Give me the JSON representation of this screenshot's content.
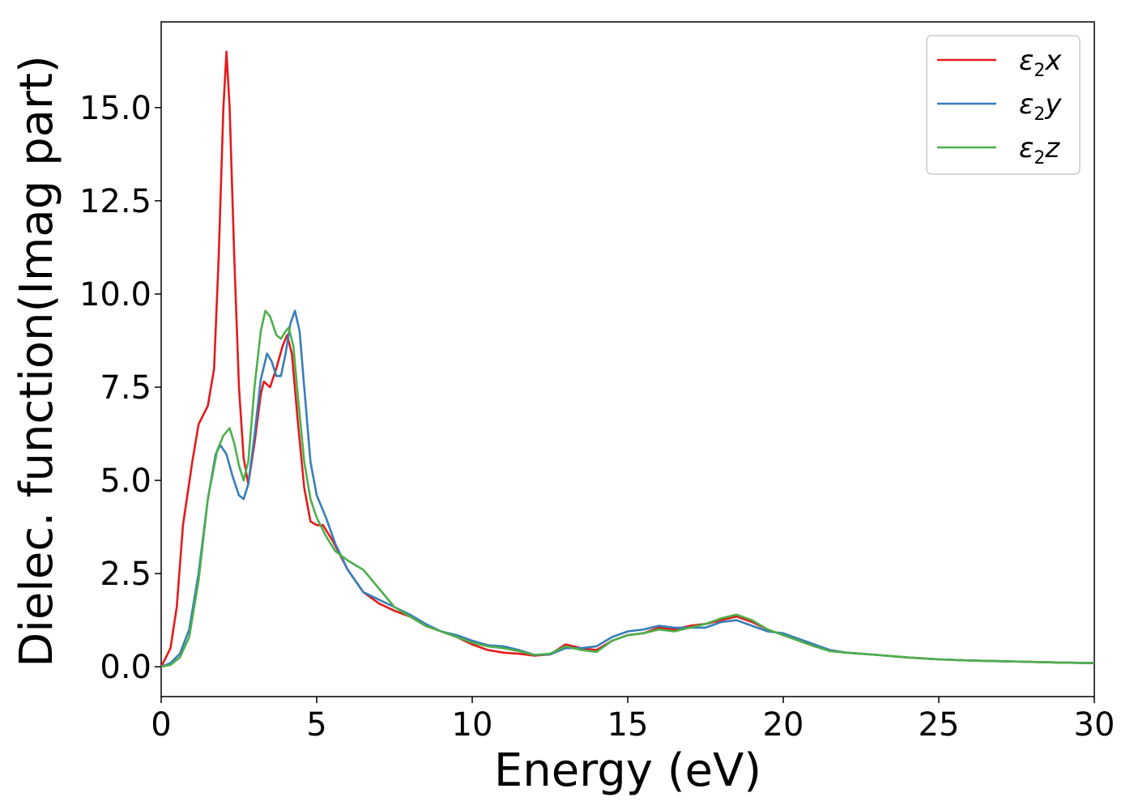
{
  "chart_data": {
    "type": "line",
    "title": "",
    "xlabel": "Energy (eV)",
    "ylabel": "Dielec. function(Imag part)",
    "xlim": [
      0,
      30
    ],
    "ylim": [
      -0.8,
      17.3
    ],
    "xticks": [
      0,
      5,
      10,
      15,
      20,
      25,
      30
    ],
    "xtick_labels": [
      "0",
      "5",
      "10",
      "15",
      "20",
      "25",
      "30"
    ],
    "yticks": [
      0,
      2.5,
      5,
      7.5,
      10,
      12.5,
      15
    ],
    "ytick_labels": [
      "0.0",
      "2.5",
      "5.0",
      "7.5",
      "10.0",
      "12.5",
      "15.0"
    ],
    "grid": false,
    "legend_position": "top-right",
    "series": [
      {
        "name": "ε2x",
        "legend_main": "ε",
        "legend_sub": "2",
        "legend_tail": "x",
        "color": "#e41a1c",
        "points": [
          [
            0,
            0
          ],
          [
            0.3,
            0.5
          ],
          [
            0.5,
            1.6
          ],
          [
            0.7,
            3.8
          ],
          [
            1.0,
            5.5
          ],
          [
            1.2,
            6.5
          ],
          [
            1.5,
            7.0
          ],
          [
            1.7,
            8.0
          ],
          [
            1.85,
            11.0
          ],
          [
            2.0,
            15.0
          ],
          [
            2.1,
            16.5
          ],
          [
            2.2,
            15.0
          ],
          [
            2.35,
            11.0
          ],
          [
            2.5,
            7.5
          ],
          [
            2.65,
            5.6
          ],
          [
            2.8,
            4.9
          ],
          [
            3.0,
            6.0
          ],
          [
            3.2,
            7.3
          ],
          [
            3.3,
            7.65
          ],
          [
            3.5,
            7.5
          ],
          [
            3.7,
            8.0
          ],
          [
            3.9,
            8.6
          ],
          [
            4.05,
            8.9
          ],
          [
            4.2,
            8.4
          ],
          [
            4.4,
            6.5
          ],
          [
            4.6,
            4.8
          ],
          [
            4.8,
            3.9
          ],
          [
            5.0,
            3.8
          ],
          [
            5.2,
            3.8
          ],
          [
            5.5,
            3.4
          ],
          [
            6.0,
            2.6
          ],
          [
            6.5,
            2.0
          ],
          [
            7.0,
            1.7
          ],
          [
            7.5,
            1.5
          ],
          [
            8.0,
            1.35
          ],
          [
            8.5,
            1.1
          ],
          [
            9.0,
            0.95
          ],
          [
            9.5,
            0.8
          ],
          [
            10.0,
            0.6
          ],
          [
            10.5,
            0.45
          ],
          [
            11.0,
            0.38
          ],
          [
            11.5,
            0.35
          ],
          [
            12.0,
            0.3
          ],
          [
            12.5,
            0.33
          ],
          [
            13.0,
            0.6
          ],
          [
            13.5,
            0.5
          ],
          [
            14.0,
            0.45
          ],
          [
            14.5,
            0.7
          ],
          [
            15.0,
            0.85
          ],
          [
            15.5,
            0.9
          ],
          [
            16.0,
            1.05
          ],
          [
            16.5,
            1.0
          ],
          [
            17.0,
            1.1
          ],
          [
            17.5,
            1.15
          ],
          [
            18.0,
            1.25
          ],
          [
            18.5,
            1.35
          ],
          [
            19.0,
            1.2
          ],
          [
            19.5,
            1.0
          ],
          [
            20.0,
            0.85
          ],
          [
            20.5,
            0.7
          ],
          [
            21.0,
            0.55
          ],
          [
            21.5,
            0.45
          ],
          [
            22.0,
            0.38
          ],
          [
            23.0,
            0.32
          ],
          [
            24.0,
            0.25
          ],
          [
            25.0,
            0.2
          ],
          [
            26.0,
            0.17
          ],
          [
            27.0,
            0.15
          ],
          [
            28.0,
            0.13
          ],
          [
            29.0,
            0.11
          ],
          [
            30.0,
            0.1
          ]
        ]
      },
      {
        "name": "ε2y",
        "legend_main": "ε",
        "legend_sub": "2",
        "legend_tail": "y",
        "color": "#377eb8",
        "points": [
          [
            0,
            0
          ],
          [
            0.3,
            0.1
          ],
          [
            0.6,
            0.35
          ],
          [
            0.9,
            1.0
          ],
          [
            1.2,
            2.5
          ],
          [
            1.5,
            4.5
          ],
          [
            1.75,
            5.7
          ],
          [
            1.9,
            5.95
          ],
          [
            2.1,
            5.7
          ],
          [
            2.3,
            5.1
          ],
          [
            2.5,
            4.6
          ],
          [
            2.65,
            4.5
          ],
          [
            2.8,
            4.9
          ],
          [
            3.0,
            6.2
          ],
          [
            3.2,
            7.7
          ],
          [
            3.4,
            8.4
          ],
          [
            3.55,
            8.2
          ],
          [
            3.7,
            7.8
          ],
          [
            3.85,
            7.8
          ],
          [
            4.0,
            8.4
          ],
          [
            4.15,
            9.2
          ],
          [
            4.3,
            9.55
          ],
          [
            4.45,
            9.0
          ],
          [
            4.6,
            7.5
          ],
          [
            4.8,
            5.5
          ],
          [
            5.0,
            4.6
          ],
          [
            5.3,
            4.0
          ],
          [
            5.6,
            3.3
          ],
          [
            6.0,
            2.6
          ],
          [
            6.5,
            2.0
          ],
          [
            7.0,
            1.8
          ],
          [
            7.5,
            1.6
          ],
          [
            8.0,
            1.4
          ],
          [
            8.5,
            1.15
          ],
          [
            9.0,
            0.95
          ],
          [
            9.5,
            0.85
          ],
          [
            10.0,
            0.7
          ],
          [
            10.5,
            0.58
          ],
          [
            11.0,
            0.55
          ],
          [
            11.5,
            0.45
          ],
          [
            12.0,
            0.32
          ],
          [
            12.5,
            0.33
          ],
          [
            13.0,
            0.5
          ],
          [
            13.5,
            0.5
          ],
          [
            14.0,
            0.55
          ],
          [
            14.5,
            0.8
          ],
          [
            15.0,
            0.95
          ],
          [
            15.5,
            1.0
          ],
          [
            16.0,
            1.1
          ],
          [
            16.5,
            1.05
          ],
          [
            17.0,
            1.05
          ],
          [
            17.5,
            1.05
          ],
          [
            18.0,
            1.2
          ],
          [
            18.5,
            1.25
          ],
          [
            19.0,
            1.1
          ],
          [
            19.5,
            0.95
          ],
          [
            20.0,
            0.9
          ],
          [
            20.5,
            0.75
          ],
          [
            21.0,
            0.6
          ],
          [
            21.5,
            0.45
          ],
          [
            22.0,
            0.38
          ],
          [
            23.0,
            0.32
          ],
          [
            24.0,
            0.25
          ],
          [
            25.0,
            0.2
          ],
          [
            26.0,
            0.17
          ],
          [
            27.0,
            0.15
          ],
          [
            28.0,
            0.13
          ],
          [
            29.0,
            0.11
          ],
          [
            30.0,
            0.1
          ]
        ]
      },
      {
        "name": "ε2z",
        "legend_main": "ε",
        "legend_sub": "2",
        "legend_tail": "z",
        "color": "#4daf4a",
        "points": [
          [
            0,
            0
          ],
          [
            0.3,
            0.05
          ],
          [
            0.6,
            0.25
          ],
          [
            0.9,
            0.8
          ],
          [
            1.2,
            2.3
          ],
          [
            1.5,
            4.5
          ],
          [
            1.8,
            5.8
          ],
          [
            2.0,
            6.2
          ],
          [
            2.2,
            6.4
          ],
          [
            2.35,
            6.0
          ],
          [
            2.5,
            5.4
          ],
          [
            2.65,
            5.0
          ],
          [
            2.8,
            5.5
          ],
          [
            3.0,
            7.5
          ],
          [
            3.2,
            9.0
          ],
          [
            3.35,
            9.55
          ],
          [
            3.5,
            9.4
          ],
          [
            3.7,
            8.9
          ],
          [
            3.85,
            8.8
          ],
          [
            4.0,
            9.0
          ],
          [
            4.1,
            9.1
          ],
          [
            4.25,
            8.6
          ],
          [
            4.4,
            7.2
          ],
          [
            4.6,
            5.5
          ],
          [
            4.8,
            4.5
          ],
          [
            5.0,
            4.0
          ],
          [
            5.3,
            3.5
          ],
          [
            5.6,
            3.1
          ],
          [
            6.0,
            2.85
          ],
          [
            6.5,
            2.6
          ],
          [
            7.0,
            2.1
          ],
          [
            7.5,
            1.6
          ],
          [
            8.0,
            1.35
          ],
          [
            8.5,
            1.1
          ],
          [
            9.0,
            0.95
          ],
          [
            9.5,
            0.8
          ],
          [
            10.0,
            0.65
          ],
          [
            10.5,
            0.55
          ],
          [
            11.0,
            0.5
          ],
          [
            11.5,
            0.42
          ],
          [
            12.0,
            0.32
          ],
          [
            12.5,
            0.35
          ],
          [
            13.0,
            0.55
          ],
          [
            13.5,
            0.45
          ],
          [
            14.0,
            0.4
          ],
          [
            14.5,
            0.7
          ],
          [
            15.0,
            0.85
          ],
          [
            15.5,
            0.9
          ],
          [
            16.0,
            1.0
          ],
          [
            16.5,
            0.95
          ],
          [
            17.0,
            1.05
          ],
          [
            17.5,
            1.15
          ],
          [
            18.0,
            1.3
          ],
          [
            18.5,
            1.4
          ],
          [
            19.0,
            1.25
          ],
          [
            19.5,
            1.0
          ],
          [
            20.0,
            0.85
          ],
          [
            20.5,
            0.7
          ],
          [
            21.0,
            0.55
          ],
          [
            21.5,
            0.42
          ],
          [
            22.0,
            0.38
          ],
          [
            23.0,
            0.32
          ],
          [
            24.0,
            0.25
          ],
          [
            25.0,
            0.2
          ],
          [
            26.0,
            0.17
          ],
          [
            27.0,
            0.15
          ],
          [
            28.0,
            0.13
          ],
          [
            29.0,
            0.11
          ],
          [
            30.0,
            0.1
          ]
        ]
      }
    ]
  }
}
